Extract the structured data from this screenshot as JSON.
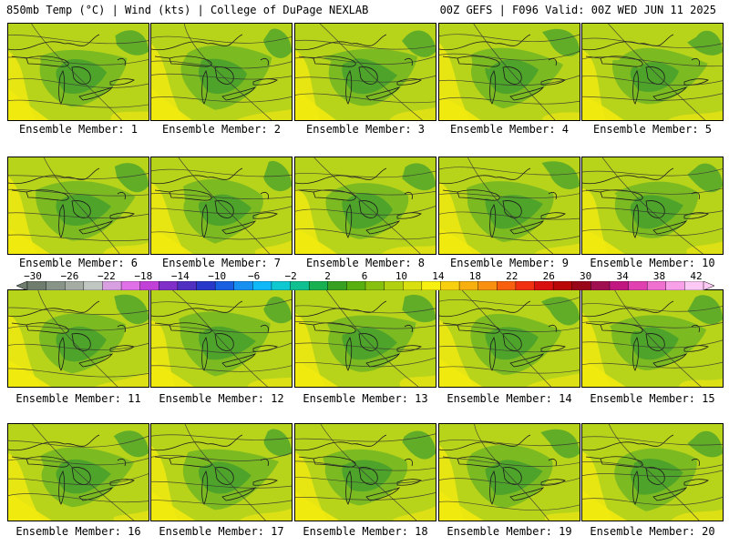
{
  "header": {
    "left": "850mb Temp (°C) | Wind (kts) | College of DuPage NEXLAB",
    "right": "00Z GEFS | F096 Valid: 00Z WED JUN 11 2025"
  },
  "members": [
    "Ensemble Member: 1",
    "Ensemble Member: 2",
    "Ensemble Member: 3",
    "Ensemble Member: 4",
    "Ensemble Member: 5",
    "Ensemble Member: 6",
    "Ensemble Member: 7",
    "Ensemble Member: 8",
    "Ensemble Member: 9",
    "Ensemble Member: 10",
    "Ensemble Member: 11",
    "Ensemble Member: 12",
    "Ensemble Member: 13",
    "Ensemble Member: 14",
    "Ensemble Member: 15",
    "Ensemble Member: 16",
    "Ensemble Member: 17",
    "Ensemble Member: 18",
    "Ensemble Member: 19",
    "Ensemble Member: 20"
  ],
  "colorbar": {
    "ticks": [
      "−30",
      "−26",
      "−22",
      "−18",
      "−14",
      "−10",
      "−6",
      "−2",
      "2",
      "6",
      "10",
      "14",
      "18",
      "22",
      "26",
      "30",
      "34",
      "38",
      "42"
    ],
    "colors": [
      "#6e7d6e",
      "#889488",
      "#a4aca4",
      "#c0c6c0",
      "#d8a0e0",
      "#e070e8",
      "#c040d8",
      "#8030c8",
      "#5030c0",
      "#2838c8",
      "#1860e0",
      "#1890f0",
      "#10b8f8",
      "#10c8d0",
      "#10c090",
      "#18b050",
      "#38a020",
      "#58b010",
      "#88c010",
      "#b0d010",
      "#d8e010",
      "#f8f010",
      "#f8d010",
      "#f8b010",
      "#f89010",
      "#f86010",
      "#f03010",
      "#d81010",
      "#b80808",
      "#980818",
      "#a01050",
      "#c01880",
      "#e040b0",
      "#f070d0",
      "#f8a0e8",
      "#fcc8f4"
    ]
  }
}
